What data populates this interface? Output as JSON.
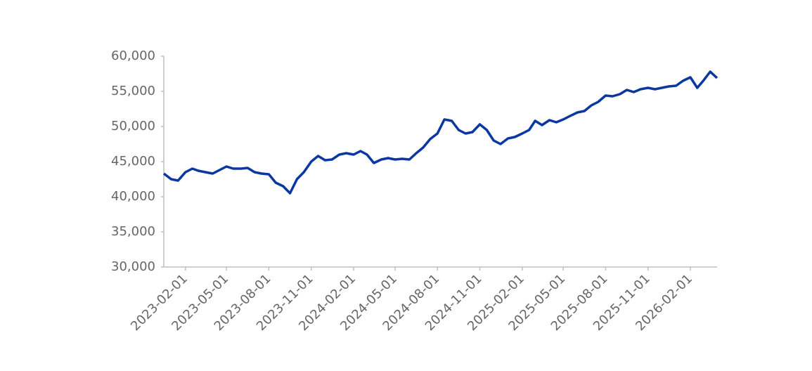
{
  "chart_data": {
    "type": "line",
    "x": [
      "2022-12-16",
      "2023-01-01",
      "2023-01-16",
      "2023-02-01",
      "2023-02-16",
      "2023-03-01",
      "2023-03-16",
      "2023-04-01",
      "2023-04-16",
      "2023-05-01",
      "2023-05-16",
      "2023-06-01",
      "2023-06-16",
      "2023-07-01",
      "2023-07-16",
      "2023-08-01",
      "2023-08-16",
      "2023-09-01",
      "2023-09-16",
      "2023-10-01",
      "2023-10-16",
      "2023-11-01",
      "2023-11-16",
      "2023-12-01",
      "2023-12-16",
      "2024-01-01",
      "2024-01-16",
      "2024-02-01",
      "2024-02-16",
      "2024-03-01",
      "2024-03-16",
      "2024-04-01",
      "2024-04-16",
      "2024-05-01",
      "2024-05-16",
      "2024-06-01",
      "2024-06-16",
      "2024-07-01",
      "2024-07-16",
      "2024-08-01",
      "2024-08-16",
      "2024-09-01",
      "2024-09-16",
      "2024-10-01",
      "2024-10-16",
      "2024-11-01",
      "2024-11-16",
      "2024-12-01",
      "2024-12-16",
      "2025-01-01",
      "2025-01-16",
      "2025-02-01",
      "2025-02-16",
      "2025-03-01",
      "2025-03-16",
      "2025-04-01",
      "2025-04-16",
      "2025-05-01",
      "2025-05-16",
      "2025-06-01",
      "2025-06-16",
      "2025-07-01",
      "2025-07-16",
      "2025-08-01",
      "2025-08-16",
      "2025-09-01",
      "2025-09-16",
      "2025-10-01",
      "2025-10-16",
      "2025-11-01",
      "2025-11-16",
      "2025-12-01",
      "2025-12-16",
      "2026-01-01",
      "2026-01-16",
      "2026-02-01",
      "2026-02-16",
      "2026-03-01",
      "2026-03-16",
      "2026-03-31"
    ],
    "series": [
      {
        "color": "#0a37a0",
        "values": [
          43300,
          42500,
          42300,
          43500,
          44000,
          43700,
          43500,
          43300,
          43800,
          44300,
          44000,
          44000,
          44100,
          43500,
          43300,
          43200,
          42000,
          41500,
          40500,
          42500,
          43500,
          45000,
          45800,
          45200,
          45300,
          46000,
          46200,
          46000,
          46500,
          46000,
          44800,
          45300,
          45500,
          45300,
          45400,
          45300,
          46200,
          47000,
          48200,
          49000,
          51000,
          50800,
          49500,
          49000,
          49200,
          50300,
          49500,
          48000,
          47500,
          48300,
          48500,
          49000,
          49500,
          50800,
          50200,
          50900,
          50600,
          51000,
          51500,
          52000,
          52200,
          53000,
          53500,
          54400,
          54300,
          54600,
          55200,
          54900,
          55300,
          55500,
          55300,
          55500,
          55700,
          55800,
          56500,
          57000,
          55500,
          56500,
          57800,
          56900
        ]
      }
    ],
    "xlim": [
      "2022-12-16",
      "2026-03-31"
    ],
    "xticks": [
      "2023-02-01",
      "2023-05-01",
      "2023-08-01",
      "2023-11-01",
      "2024-02-01",
      "2024-05-01",
      "2024-08-01",
      "2024-11-01",
      "2025-02-01",
      "2025-05-01",
      "2025-08-01",
      "2025-11-01",
      "2026-02-01"
    ],
    "ylim": [
      30000,
      60000
    ],
    "yticks": [
      {
        "value": 30000,
        "label": "30,000"
      },
      {
        "value": 35000,
        "label": "35,000"
      },
      {
        "value": 40000,
        "label": "40,000"
      },
      {
        "value": 45000,
        "label": "45,000"
      },
      {
        "value": 50000,
        "label": "50,000"
      },
      {
        "value": 55000,
        "label": "55,000"
      },
      {
        "value": 60000,
        "label": "60,000"
      }
    ],
    "grid": false
  }
}
